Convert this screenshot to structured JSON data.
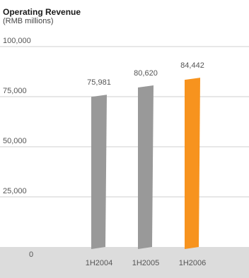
{
  "chart_data": {
    "type": "bar",
    "title": "Operating Revenue",
    "subtitle": "(RMB millions)",
    "categories": [
      "1H2004",
      "1H2005",
      "1H2006"
    ],
    "values": [
      75981,
      80620,
      84442
    ],
    "value_labels": [
      "75,981",
      "80,620",
      "84,442"
    ],
    "ylim": [
      0,
      100000
    ],
    "y_ticks": [
      {
        "value": 0,
        "label": "0"
      },
      {
        "value": 25000,
        "label": "25,000"
      },
      {
        "value": 50000,
        "label": "50,000"
      },
      {
        "value": 75000,
        "label": "75,000"
      },
      {
        "value": 100000,
        "label": "100,000"
      }
    ],
    "grid": true,
    "legend": "none",
    "colors": {
      "bar": "#999999",
      "highlight": "#f7931e",
      "grid": "#cfcfcf",
      "base_band": "#dcdcdc"
    },
    "highlight_index": 2
  }
}
